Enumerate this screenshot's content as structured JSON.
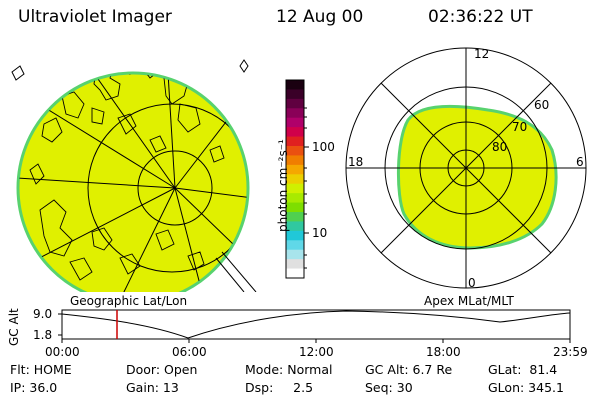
{
  "header": {
    "title": "Ultraviolet Imager",
    "date": "12 Aug 00",
    "time": "02:36:22 UT"
  },
  "colors": {
    "aurora_fill": "#e0f000",
    "aurora_edge": "#58d26e",
    "lines": "#000000",
    "marker": "#cc0000"
  },
  "colorbar": {
    "unit_label": "photon cm⁻²s⁻¹",
    "ticks": [
      "100",
      "10"
    ],
    "colors_top_to_bottom": [
      "#1a0010",
      "#3a0028",
      "#600040",
      "#8a0058",
      "#b0006a",
      "#d0004a",
      "#e02020",
      "#ea5010",
      "#f07e00",
      "#f5a800",
      "#ecd000",
      "#d0f000",
      "#a8ea00",
      "#7ede00",
      "#50d050",
      "#30c8a0",
      "#20c8d8",
      "#60d8e8",
      "#a8e4ec",
      "#e0e0e0",
      "#ffffff"
    ]
  },
  "geo_panel": {
    "label": "Geographic Lat/Lon"
  },
  "apex_panel": {
    "label": "Apex MLat/MLT",
    "mlt_labels": {
      "top": "12",
      "left": "18",
      "right": "6",
      "bottom": "0"
    },
    "lat_labels": [
      "60",
      "70",
      "80"
    ]
  },
  "altitude_plot": {
    "ylabel": "GC Alt",
    "yticks": [
      "9.0",
      "1.8"
    ],
    "xticks": [
      "00:00",
      "06:00",
      "12:00",
      "18:00",
      "23:59"
    ],
    "marker_time_hours": 2.6
  },
  "info": {
    "row1": {
      "flt": "Flt: HOME",
      "door": "Door: Open",
      "mode": "Mode: Normal",
      "gcalt": "GC Alt: 6.7 Re",
      "glat": "GLat:  81.4"
    },
    "row2": {
      "ip": "IP: 36.0",
      "gain": "Gain: 13",
      "dsp": "Dsp:     2.5",
      "seq": "Seq: 30",
      "glon": "GLon: 345.1"
    }
  }
}
